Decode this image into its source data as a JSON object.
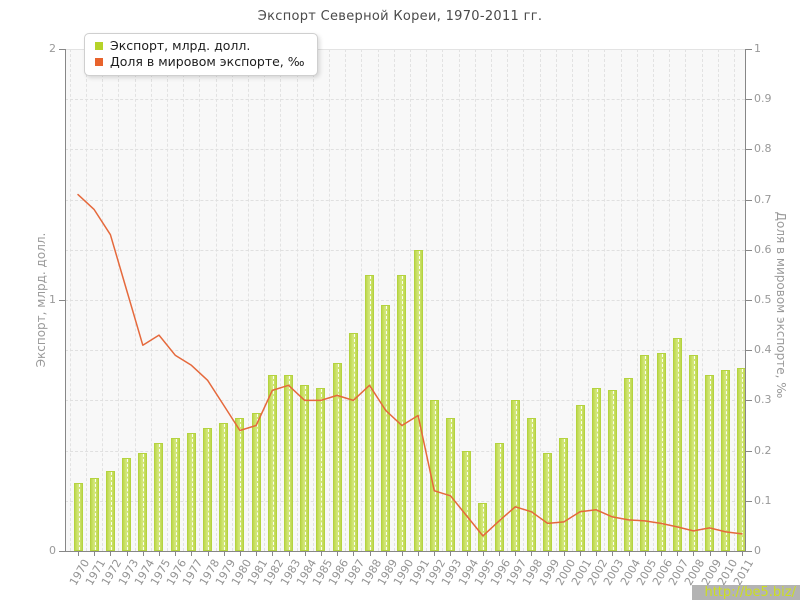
{
  "title": "Экспорт Северной Кореи, 1970-2011 гг.",
  "legend": {
    "items": [
      {
        "label": "Экспорт, млрд. долл.",
        "color": "#b6d329"
      },
      {
        "label": "Доля в мировом экспорте, ‰",
        "color": "#e8632c"
      }
    ]
  },
  "axes": {
    "y_left": {
      "label": "Экспорт, млрд. долл.",
      "ticks": [
        "0",
        "1",
        "2"
      ],
      "range": [
        0,
        2
      ]
    },
    "y_right": {
      "label": "Доля в мировом экспорте, ‰",
      "ticks": [
        "0",
        "0.1",
        "0.2",
        "0.3",
        "0.4",
        "0.5",
        "0.6",
        "0.7",
        "0.8",
        "0.9",
        "1"
      ],
      "range": [
        0,
        1
      ]
    }
  },
  "watermark": {
    "text": "http://be5.biz/",
    "text_color": "#ccdf21",
    "bg_color": "#b3b3b3"
  },
  "chart_data": {
    "type": "bar",
    "title": "Экспорт Северной Кореи, 1970-2011 гг.",
    "categories": [
      "1970",
      "1971",
      "1972",
      "1973",
      "1974",
      "1975",
      "1976",
      "1977",
      "1978",
      "1979",
      "1980",
      "1981",
      "1982",
      "1983",
      "1984",
      "1985",
      "1986",
      "1987",
      "1988",
      "1989",
      "1990",
      "1991",
      "1992",
      "1993",
      "1994",
      "1995",
      "1996",
      "1997",
      "1998",
      "1999",
      "2000",
      "2001",
      "2002",
      "2003",
      "2004",
      "2005",
      "2006",
      "2007",
      "2008",
      "2009",
      "2010",
      "2011"
    ],
    "series": [
      {
        "name": "Экспорт, млрд. долл.",
        "type": "bar",
        "axis": "left",
        "color": "#cde268",
        "values": [
          0.27,
          0.29,
          0.32,
          0.37,
          0.39,
          0.43,
          0.45,
          0.47,
          0.49,
          0.51,
          0.53,
          0.55,
          0.7,
          0.7,
          0.66,
          0.65,
          0.75,
          0.87,
          1.1,
          0.98,
          1.1,
          1.2,
          0.6,
          0.53,
          0.4,
          0.19,
          0.43,
          0.6,
          0.53,
          0.39,
          0.45,
          0.58,
          0.65,
          0.64,
          0.69,
          0.78,
          0.79,
          0.85,
          0.78,
          0.7,
          0.72,
          0.73
        ]
      },
      {
        "name": "Доля в мировом экспорте, ‰",
        "type": "line",
        "axis": "right",
        "color": "#e5693c",
        "values": [
          0.71,
          0.68,
          0.63,
          0.52,
          0.41,
          0.43,
          0.39,
          0.37,
          0.34,
          0.29,
          0.24,
          0.25,
          0.32,
          0.33,
          0.3,
          0.3,
          0.31,
          0.3,
          0.33,
          0.28,
          0.25,
          0.27,
          0.12,
          0.11,
          0.07,
          0.03,
          0.06,
          0.088,
          0.078,
          0.055,
          0.058,
          0.078,
          0.082,
          0.068,
          0.062,
          0.06,
          0.055,
          0.048,
          0.04,
          0.046,
          0.038,
          0.034
        ]
      }
    ],
    "y_left_label": "Экспорт, млрд. долл.",
    "y_right_label": "Доля в мировом экспорте, ‰",
    "y_left_range": [
      0,
      2
    ],
    "y_right_range": [
      0,
      1
    ],
    "grid": true,
    "legend_position": "top-left"
  }
}
